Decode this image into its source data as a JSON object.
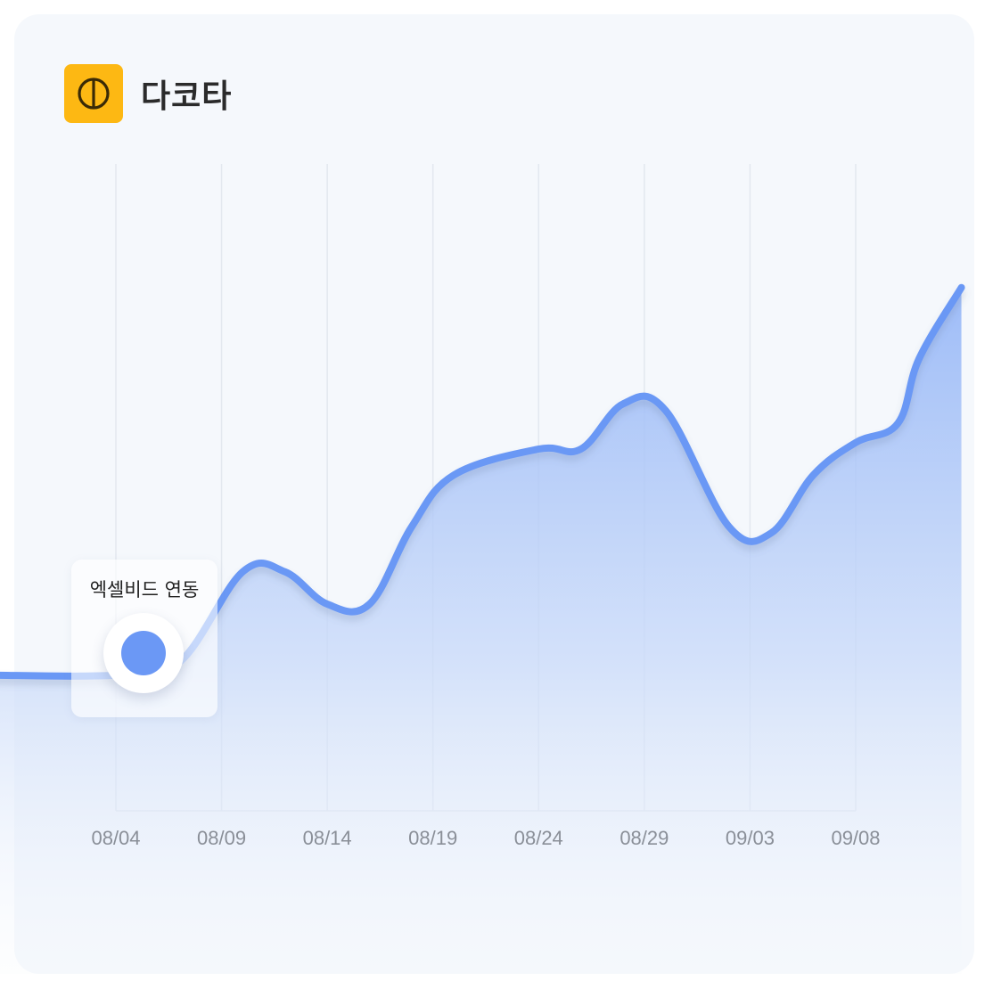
{
  "brand": {
    "name": "다코타",
    "color": "#fdb813"
  },
  "tooltip": {
    "label": "엑셀비드 연동",
    "date": "08/04"
  },
  "chart_data": {
    "type": "area",
    "title": "",
    "xlabel": "",
    "ylabel": "",
    "x_tick_labels": [
      "08/04",
      "08/09",
      "08/14",
      "08/19",
      "08/24",
      "08/29",
      "09/03",
      "09/08"
    ],
    "series": [
      {
        "color": "#6b98f5",
        "points": [
          {
            "x": "07/29",
            "y": 21
          },
          {
            "x": "08/04",
            "y": 21
          },
          {
            "x": "08/07",
            "y": 23
          },
          {
            "x": "08/10",
            "y": 37
          },
          {
            "x": "08/12",
            "y": 37
          },
          {
            "x": "08/14",
            "y": 32
          },
          {
            "x": "08/16",
            "y": 32
          },
          {
            "x": "08/18",
            "y": 44
          },
          {
            "x": "08/20",
            "y": 52
          },
          {
            "x": "08/24",
            "y": 56
          },
          {
            "x": "08/26",
            "y": 56
          },
          {
            "x": "08/28",
            "y": 63
          },
          {
            "x": "08/30",
            "y": 62
          },
          {
            "x": "09/02",
            "y": 44
          },
          {
            "x": "09/04",
            "y": 43
          },
          {
            "x": "09/06",
            "y": 52
          },
          {
            "x": "09/08",
            "y": 57
          },
          {
            "x": "09/10",
            "y": 60
          },
          {
            "x": "09/11",
            "y": 70
          },
          {
            "x": "09/13",
            "y": 81
          }
        ]
      }
    ],
    "grid": true,
    "area_fill": true
  }
}
